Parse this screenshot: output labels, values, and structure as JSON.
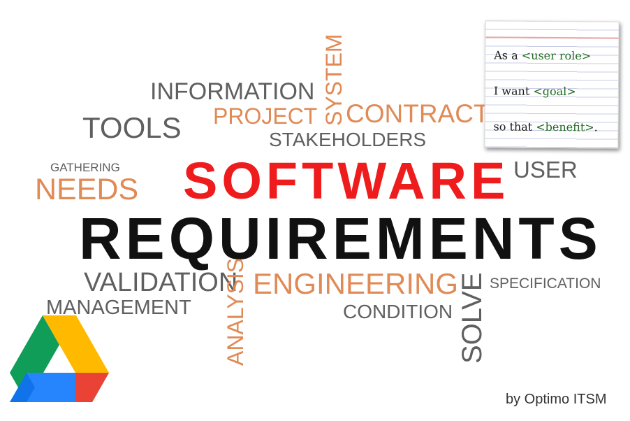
{
  "words": {
    "information": "INFORMATION",
    "tools": "TOOLS",
    "project": "PROJECT",
    "system": "SYSTEM",
    "contract": "CONTRACT",
    "stakeholders": "STAKEHOLDERS",
    "gathering": "GATHERING",
    "needs": "NEEDS",
    "user": "USER",
    "software": "SOFTWARE",
    "requirements": "REQUIREMENTS",
    "validation": "VALIDATION",
    "management": "MANAGEMENT",
    "analysis": "ANALYSIS",
    "engineering": "ENGINEERING",
    "condition": "CONDITION",
    "solve": "SOLVE",
    "specification": "SPECIFICATION"
  },
  "card": {
    "line1_prefix": "As a ",
    "line1_placeholder": "<user role>",
    "line2_prefix": "I want ",
    "line2_placeholder": "<goal>",
    "line3_prefix": "so that ",
    "line3_placeholder": "<benefit>",
    "line3_suffix": "."
  },
  "byline": "by Optimo ITSM",
  "colors": {
    "title_red": "#ee1c1c",
    "title_black": "#111111",
    "word_gray": "#5f5f5f",
    "word_orange": "#e08a56",
    "placeholder_green": "#1f6b1f"
  },
  "logo": {
    "icon": "google-drive-icon"
  }
}
